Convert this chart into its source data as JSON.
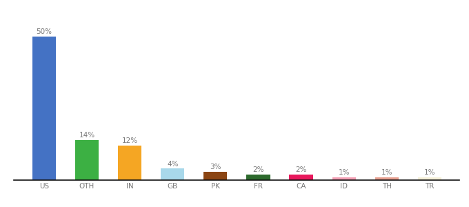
{
  "categories": [
    "US",
    "OTH",
    "IN",
    "GB",
    "PK",
    "FR",
    "CA",
    "ID",
    "TH",
    "TR"
  ],
  "values": [
    50,
    14,
    12,
    4,
    3,
    2,
    2,
    1,
    1,
    1
  ],
  "labels": [
    "50%",
    "14%",
    "12%",
    "4%",
    "3%",
    "2%",
    "2%",
    "1%",
    "1%",
    "1%"
  ],
  "bar_colors": [
    "#4472c4",
    "#3cb043",
    "#f5a623",
    "#a8d8ea",
    "#8b4513",
    "#2d6a2d",
    "#e8185c",
    "#f4a0b5",
    "#e8a090",
    "#f5f0d8"
  ],
  "ylim": [
    0,
    57
  ],
  "background_color": "#ffffff",
  "label_fontsize": 7.5,
  "tick_fontsize": 7.5,
  "label_color": "#7a7a7a",
  "tick_color": "#7a7a7a",
  "bar_width": 0.55,
  "bottom_spine_color": "#111111"
}
